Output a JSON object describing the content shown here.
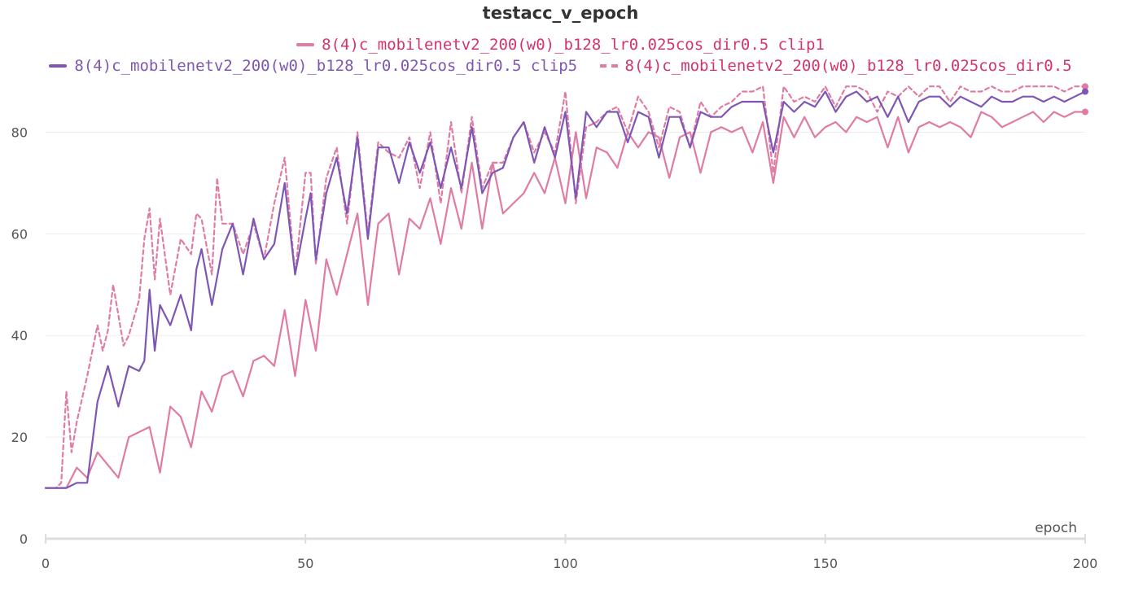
{
  "colors": {
    "clip1": "#e07ba3",
    "clip5": "#7e57b5",
    "base": "#e07ba3",
    "legend_text_pink": "#d6336c",
    "legend_text_purple": "#7e57b5",
    "grid": "#eeeeee",
    "axis": "#dddddd",
    "tick_text": "#555555"
  },
  "chart_data": {
    "type": "line",
    "title": "testacc_v_epoch",
    "xlabel": "epoch",
    "ylabel": "",
    "xlim": [
      0,
      200
    ],
    "ylim": [
      0,
      90
    ],
    "xticks": [
      0,
      50,
      100,
      150,
      200
    ],
    "yticks": [
      0,
      20,
      40,
      60,
      80
    ],
    "grid": true,
    "legend_position": "top",
    "series": [
      {
        "name": "8(4)c_mobilenetv2_200(w0)_b128_lr0.025cos_dir0.5 clip1",
        "style": "solid",
        "x": [
          0,
          4,
          6,
          8,
          10,
          14,
          16,
          20,
          22,
          24,
          26,
          28,
          30,
          32,
          34,
          36,
          38,
          40,
          42,
          44,
          46,
          48,
          50,
          52,
          54,
          56,
          58,
          60,
          62,
          64,
          66,
          68,
          70,
          72,
          74,
          76,
          78,
          80,
          82,
          84,
          86,
          88,
          90,
          92,
          94,
          96,
          98,
          100,
          102,
          104,
          106,
          108,
          110,
          112,
          114,
          116,
          118,
          120,
          122,
          124,
          126,
          128,
          130,
          132,
          134,
          136,
          138,
          140,
          142,
          144,
          146,
          148,
          150,
          152,
          154,
          156,
          158,
          160,
          162,
          164,
          166,
          168,
          170,
          172,
          174,
          176,
          178,
          180,
          182,
          184,
          186,
          188,
          190,
          192,
          194,
          196,
          198,
          200
        ],
        "y": [
          10,
          10,
          14,
          12,
          17,
          12,
          20,
          22,
          13,
          26,
          24,
          18,
          29,
          25,
          32,
          33,
          28,
          35,
          36,
          34,
          45,
          32,
          47,
          37,
          55,
          48,
          56,
          64,
          46,
          62,
          64,
          52,
          63,
          61,
          67,
          58,
          69,
          61,
          74,
          61,
          74,
          64,
          66,
          68,
          72,
          68,
          75,
          66,
          80,
          67,
          77,
          76,
          73,
          80,
          77,
          80,
          79,
          71,
          79,
          80,
          72,
          80,
          81,
          80,
          81,
          76,
          82,
          70,
          83,
          79,
          83,
          79,
          81,
          82,
          80,
          83,
          82,
          83,
          77,
          83,
          76,
          81,
          82,
          81,
          82,
          81,
          79,
          84,
          83,
          81,
          82,
          83,
          84,
          82,
          84,
          83,
          84,
          84
        ]
      },
      {
        "name": "8(4)c_mobilenetv2_200(w0)_b128_lr0.025cos_dir0.5 clip5",
        "style": "solid",
        "x": [
          0,
          2,
          4,
          6,
          8,
          10,
          12,
          14,
          16,
          18,
          19,
          20,
          21,
          22,
          24,
          26,
          28,
          29,
          30,
          32,
          34,
          36,
          38,
          40,
          42,
          44,
          46,
          48,
          50,
          51,
          52,
          54,
          56,
          58,
          60,
          62,
          64,
          66,
          68,
          70,
          72,
          74,
          76,
          78,
          80,
          82,
          84,
          86,
          88,
          90,
          92,
          94,
          96,
          98,
          100,
          102,
          104,
          106,
          108,
          110,
          112,
          114,
          116,
          118,
          120,
          122,
          124,
          126,
          128,
          130,
          132,
          134,
          136,
          138,
          140,
          142,
          144,
          146,
          148,
          150,
          152,
          154,
          156,
          158,
          160,
          162,
          164,
          166,
          168,
          170,
          172,
          174,
          176,
          178,
          180,
          182,
          184,
          186,
          188,
          190,
          192,
          194,
          196,
          198,
          200
        ],
        "y": [
          10,
          10,
          10,
          11,
          11,
          27,
          34,
          26,
          34,
          33,
          35,
          49,
          37,
          46,
          42,
          48,
          41,
          53,
          57,
          46,
          57,
          62,
          52,
          63,
          55,
          58,
          70,
          52,
          63,
          68,
          55,
          68,
          75,
          64,
          79,
          59,
          77,
          77,
          70,
          78,
          72,
          78,
          69,
          77,
          69,
          81,
          68,
          72,
          73,
          79,
          82,
          74,
          81,
          75,
          84,
          67,
          84,
          81,
          84,
          84,
          78,
          84,
          83,
          75,
          83,
          83,
          77,
          84,
          83,
          83,
          85,
          86,
          86,
          86,
          76,
          86,
          84,
          86,
          85,
          88,
          84,
          87,
          88,
          86,
          87,
          83,
          87,
          82,
          86,
          87,
          87,
          85,
          87,
          86,
          85,
          87,
          86,
          86,
          87,
          87,
          86,
          87,
          86,
          87,
          88
        ]
      },
      {
        "name": "8(4)c_mobilenetv2_200(w0)_b128_lr0.025cos_dir0.5",
        "style": "dashed",
        "x": [
          0,
          2,
          3,
          4,
          5,
          6,
          8,
          10,
          11,
          12,
          13,
          14,
          15,
          16,
          18,
          19,
          20,
          21,
          22,
          24,
          26,
          28,
          29,
          30,
          32,
          33,
          34,
          36,
          38,
          40,
          42,
          44,
          46,
          48,
          50,
          51,
          52,
          54,
          56,
          58,
          60,
          62,
          64,
          66,
          68,
          70,
          72,
          74,
          76,
          78,
          80,
          82,
          84,
          86,
          88,
          90,
          92,
          94,
          96,
          98,
          100,
          102,
          104,
          106,
          108,
          110,
          112,
          114,
          116,
          118,
          120,
          122,
          124,
          126,
          128,
          130,
          132,
          134,
          136,
          138,
          140,
          142,
          144,
          146,
          148,
          150,
          152,
          154,
          156,
          158,
          160,
          162,
          164,
          166,
          168,
          170,
          172,
          174,
          176,
          178,
          180,
          182,
          184,
          186,
          188,
          190,
          192,
          194,
          196,
          198,
          200
        ],
        "y": [
          10,
          10,
          11,
          29,
          17,
          23,
          32,
          42,
          37,
          41,
          50,
          44,
          38,
          40,
          47,
          59,
          65,
          51,
          63,
          48,
          59,
          56,
          64,
          63,
          52,
          71,
          62,
          62,
          56,
          62,
          55,
          66,
          75,
          52,
          72,
          72,
          54,
          71,
          77,
          62,
          80,
          60,
          78,
          76,
          75,
          79,
          69,
          80,
          66,
          82,
          68,
          83,
          69,
          74,
          74,
          79,
          82,
          76,
          80,
          76,
          88,
          66,
          81,
          82,
          84,
          85,
          80,
          87,
          84,
          77,
          85,
          84,
          77,
          86,
          83,
          85,
          86,
          88,
          88,
          89,
          72,
          89,
          86,
          87,
          86,
          89,
          85,
          89,
          89,
          88,
          84,
          88,
          87,
          89,
          87,
          89,
          89,
          86,
          89,
          88,
          88,
          89,
          88,
          88,
          89,
          89,
          89,
          89,
          88,
          89,
          89
        ]
      }
    ]
  }
}
